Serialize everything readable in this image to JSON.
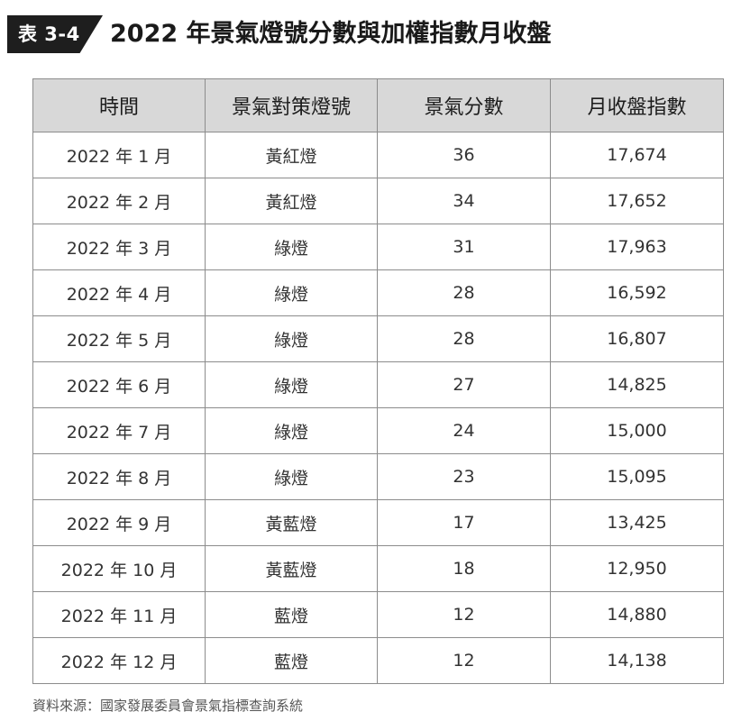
{
  "header": {
    "table_label": "表 3-4",
    "title": "2022 年景氣燈號分數與加權指數月收盤"
  },
  "table": {
    "columns": [
      "時間",
      "景氣對策燈號",
      "景氣分數",
      "月收盤指數"
    ],
    "rows": [
      [
        "2022 年 1 月",
        "黃紅燈",
        "36",
        "17,674"
      ],
      [
        "2022 年 2 月",
        "黃紅燈",
        "34",
        "17,652"
      ],
      [
        "2022 年 3 月",
        "綠燈",
        "31",
        "17,963"
      ],
      [
        "2022 年 4 月",
        "綠燈",
        "28",
        "16,592"
      ],
      [
        "2022 年 5 月",
        "綠燈",
        "28",
        "16,807"
      ],
      [
        "2022 年 6 月",
        "綠燈",
        "27",
        "14,825"
      ],
      [
        "2022 年 7 月",
        "綠燈",
        "24",
        "15,000"
      ],
      [
        "2022 年 8 月",
        "綠燈",
        "23",
        "15,095"
      ],
      [
        "2022 年 9 月",
        "黃藍燈",
        "17",
        "13,425"
      ],
      [
        "2022 年 10 月",
        "黃藍燈",
        "18",
        "12,950"
      ],
      [
        "2022 年 11 月",
        "藍燈",
        "12",
        "14,880"
      ],
      [
        "2022 年 12 月",
        "藍燈",
        "12",
        "14,138"
      ]
    ]
  },
  "source": "資料來源：國家發展委員會景氣指標查詢系統",
  "colors": {
    "badge_bg": "#1e1e1e",
    "header_bg": "#d8d8d8",
    "border": "#8c8c8c"
  }
}
